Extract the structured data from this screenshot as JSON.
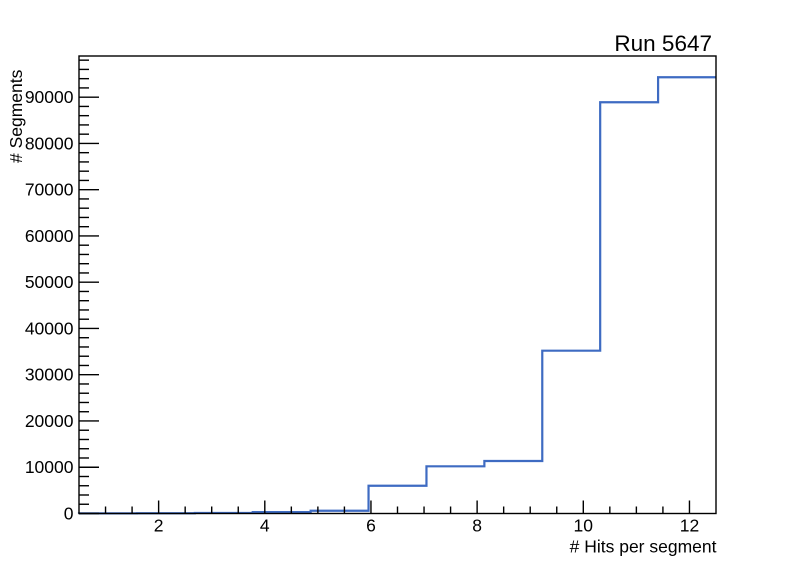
{
  "title": "Run 5647",
  "chart_data": {
    "type": "histogram-step",
    "title": "Run 5647",
    "xlabel": "# Hits per segment",
    "ylabel": "# Segments",
    "xlim": [
      0.5,
      12.5
    ],
    "ylim": [
      0,
      98900
    ],
    "bin_edges": [
      0.5,
      1.5909,
      2.6818,
      3.7727,
      4.8636,
      5.9545,
      7.0455,
      8.1364,
      9.2273,
      10.3182,
      11.4091,
      12.5
    ],
    "counts": [
      30,
      60,
      120,
      300,
      600,
      6000,
      10200,
      11350,
      35200,
      88900,
      94300
    ],
    "x_major_ticks": [
      2,
      4,
      6,
      8,
      10,
      12
    ],
    "x_tick_labels": [
      "2",
      "4",
      "6",
      "8",
      "10",
      "12"
    ],
    "x_minor_step": 0.5,
    "y_major_ticks": [
      0,
      10000,
      20000,
      30000,
      40000,
      50000,
      60000,
      70000,
      80000,
      90000
    ],
    "y_tick_labels": [
      "0",
      "10000",
      "20000",
      "30000",
      "40000",
      "50000",
      "60000",
      "70000",
      "80000",
      "90000"
    ],
    "y_minor_step": 2000,
    "line_color": "#3e6bc2",
    "frame_color": "#000000",
    "background": "#ffffff",
    "grid": false,
    "legend_position": "none"
  }
}
